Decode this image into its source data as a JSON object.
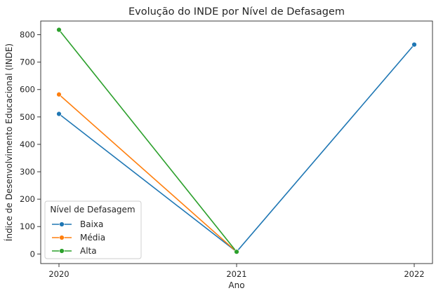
{
  "chart_data": {
    "type": "line",
    "title": "Evolução do INDE por Nível de Defasagem",
    "xlabel": "Ano",
    "ylabel": "Índice de Desenvolvimento Educacional (INDE)",
    "x": [
      "2020",
      "2021",
      "2022"
    ],
    "ylim": [
      -35,
      850
    ],
    "yticks": [
      0,
      100,
      200,
      300,
      400,
      500,
      600,
      700,
      800
    ],
    "grid": false,
    "legend": {
      "title": "Nível de Defasagem",
      "placement": "lower-left"
    },
    "series": [
      {
        "name": "Baixa",
        "color": "#1f77b4",
        "values": [
          511,
          8,
          764
        ]
      },
      {
        "name": "Média",
        "color": "#ff7f0e",
        "values": [
          582,
          8,
          null
        ]
      },
      {
        "name": "Alta",
        "color": "#2ca02c",
        "values": [
          818,
          8,
          null
        ]
      }
    ]
  }
}
